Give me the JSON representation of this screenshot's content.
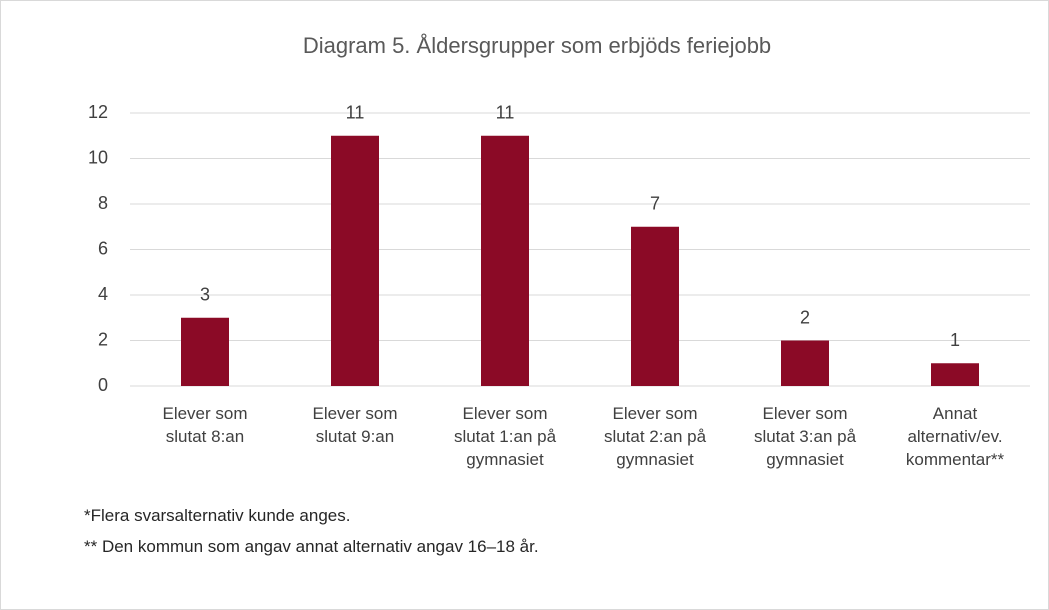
{
  "chart_data": {
    "type": "bar",
    "title": "Diagram 5. Åldersgrupper som erbjöds feriejobb",
    "categories": [
      "Elever som slutat 8:an",
      "Elever som slutat 9:an",
      "Elever som slutat 1:an på gymnasiet",
      "Elever som slutat 2:an på gymnasiet",
      "Elever som slutat 3:an på gymnasiet",
      "Annat alternativ/ev. kommentar**"
    ],
    "values": [
      3,
      11,
      11,
      7,
      2,
      1
    ],
    "color": "#8b0a26",
    "ylim": [
      0,
      12
    ],
    "yticks": [
      0,
      2,
      4,
      6,
      8,
      10,
      12
    ],
    "grid": true,
    "annotations": [
      "*Flera svarsalternativ kunde anges.",
      "** Den kommun som angav annat alternativ angav 16–18 år."
    ]
  }
}
